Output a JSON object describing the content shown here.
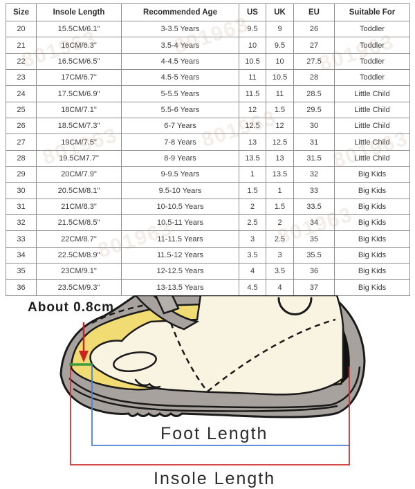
{
  "table": {
    "headers": [
      "Size",
      "Insole Length",
      "Recommended Age",
      "US",
      "UK",
      "EU",
      "Suitable For"
    ],
    "rows": [
      [
        "20",
        "15.5CM/6.1\"",
        "3-3.5 Years",
        "9.5",
        "9",
        "26",
        "Toddler"
      ],
      [
        "21",
        "16CM/6.3\"",
        "3.5-4 Years",
        "10",
        "9.5",
        "27",
        "Toddler"
      ],
      [
        "22",
        "16.5CM/6.5\"",
        "4-4.5 Years",
        "10.5",
        "10",
        "27.5",
        "Toddler"
      ],
      [
        "23",
        "17CM/6.7\"",
        "4.5-5 Years",
        "11",
        "10.5",
        "28",
        "Toddler"
      ],
      [
        "24",
        "17.5CM/6.9\"",
        "5-5.5 Years",
        "11.5",
        "11",
        "28.5",
        "Little Child"
      ],
      [
        "25",
        "18CM/7.1\"",
        "5.5-6 Years",
        "12",
        "1.5",
        "29.5",
        "Little Child"
      ],
      [
        "26",
        "18.5CM/7.3\"",
        "6-7 Years",
        "12.5",
        "12",
        "30",
        "Little Child"
      ],
      [
        "27",
        "19CM/7.5\"",
        "7-8 Years",
        "13",
        "12.5",
        "31",
        "Little Child"
      ],
      [
        "28",
        "19.5CM7.7\"",
        "8-9 Years",
        "13.5",
        "13",
        "31.5",
        "Little Child"
      ],
      [
        "29",
        "20CM/7.9\"",
        "9-9.5 Years",
        "1",
        "13.5",
        "32",
        "Big Kids"
      ],
      [
        "30",
        "20.5CM/8.1\"",
        "9.5-10 Years",
        "1.5",
        "1",
        "33",
        "Big Kids"
      ],
      [
        "31",
        "21CM/8.3\"",
        "10-10.5 Years",
        "2",
        "1.5",
        "33.5",
        "Big Kids"
      ],
      [
        "32",
        "21.5CM/8.5\"",
        "10.5-11 Years",
        "2.5",
        "2",
        "34",
        "Big Kids"
      ],
      [
        "33",
        "22CM/8.7\"",
        "11-11.5 Years",
        "3",
        "2.5",
        "35",
        "Big Kids"
      ],
      [
        "34",
        "22.5CM/8.9\"",
        "11.5-12 Years",
        "3.5",
        "3",
        "35.5",
        "Big Kids"
      ],
      [
        "35",
        "23CM/9.1\"",
        "12-12.5 Years",
        "4",
        "3.5",
        "36",
        "Big Kids"
      ],
      [
        "36",
        "23.5CM/9.3\"",
        "13-13.5 Years",
        "4.5",
        "4",
        "37",
        "Big Kids"
      ]
    ]
  },
  "watermark": {
    "text": "801963"
  },
  "diagram": {
    "about_label": "About 0.8cm",
    "foot_length_label": "Foot Length",
    "insole_length_label": "Insole Length",
    "colors": {
      "shoe_gray": "#a7a29d",
      "strap_gray": "#b3afaa",
      "foot_cream": "#f8f4e1",
      "insole_yellow": "#f1dc74",
      "outline_black": "#1a1a1a",
      "toe_gap_green": "#3f9b3f",
      "arrow_red": "#cc2222",
      "foot_line_blue": "#4a7fd4",
      "insole_line_red": "#cc3333"
    }
  }
}
